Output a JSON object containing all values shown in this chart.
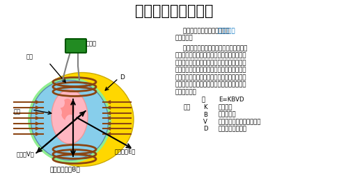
{
  "title": "电磁流量计原理介绍",
  "bg_color": "#ffffff",
  "text_color": "#000000",
  "link_color": "#0070c0",
  "label_xianquan": "线圈",
  "label_zhuanhuanqi": "转换器",
  "label_D": "D",
  "label_dianj": "电极",
  "label_dianya": "电压（V）",
  "label_cidong": "电动势（E）",
  "label_cigan": "磁感应强度（B）",
  "intro_prefix": "    电磁流量计的测量原理是基于",
  "intro_link": "法拉第电磁",
  "intro_suffix": "感应定律。",
  "body_lines": [
    "    上下两端的两个电磁线圈产生恒定或交变",
    "磁场，当导电介质流过电磁流量计时，流量计",
    "管壁上的电极可检测到感应电动势，这个感应",
    "电动势与导电介质流速、磁场的磁感应强度、",
    "导体宽度（流量计测量管内径）成正比，通过",
    "智能表头运算即可得到介质流量感应电动势工",
    "艺参数方程为"
  ],
  "formula_colon": "：",
  "formula_eq": "E=KBVD",
  "formula_label": "式中",
  "formula_rows": [
    [
      "K",
      "仪表常数"
    ],
    [
      "B",
      "磁感应强度"
    ],
    [
      "V",
      "测量管道截面内的平均流速"
    ],
    [
      "D",
      "测量管道截面的内"
    ]
  ],
  "coil_color": "#8B4513",
  "yellow_color": "#FFD700",
  "blue_color": "#87CEEB",
  "green_ring_color": "#90EE90",
  "pink_color": "#FFB6C1",
  "converter_color": "#228B22"
}
